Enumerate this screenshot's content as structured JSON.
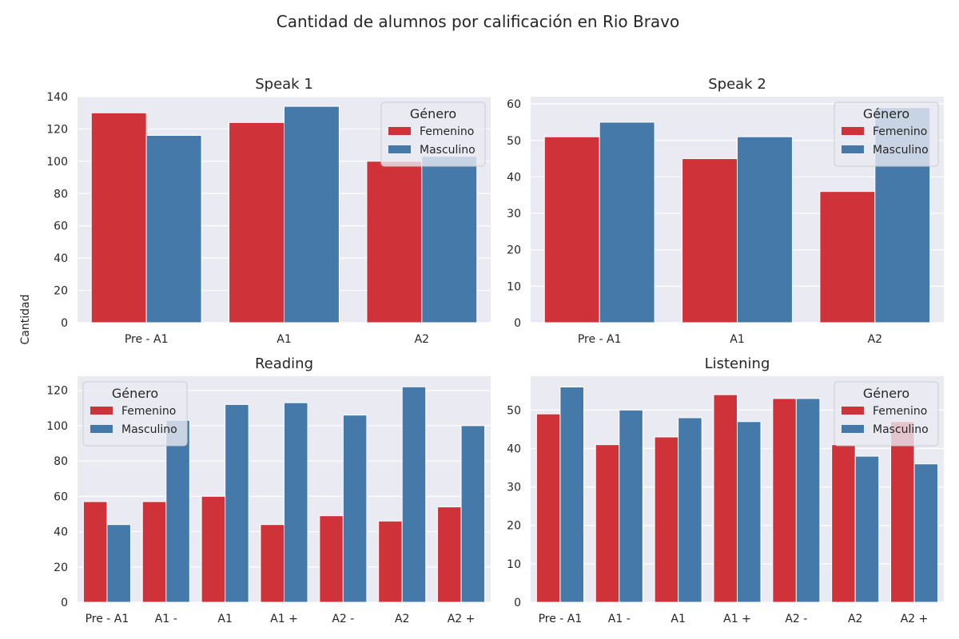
{
  "title": "Cantidad de alumnos por calificación en Rio Bravo",
  "ylabel": "Cantidad",
  "colors": {
    "Femenino": "#d0323a",
    "Masculino": "#4479a9",
    "background": "#eaeaf2",
    "grid": "#ffffff"
  },
  "chart_data": [
    {
      "type": "bar",
      "title": "Speak 1",
      "categories": [
        "Pre - A1",
        "A1",
        "A2"
      ],
      "ylim": [
        0,
        140
      ],
      "yticks": [
        0,
        20,
        40,
        60,
        80,
        100,
        120,
        140
      ],
      "legend": {
        "title": "Género",
        "position": "upper right"
      },
      "series": [
        {
          "name": "Femenino",
          "color": "#d0323a",
          "values": [
            130,
            124,
            100
          ]
        },
        {
          "name": "Masculino",
          "color": "#4479a9",
          "values": [
            116,
            134,
            103
          ]
        }
      ]
    },
    {
      "type": "bar",
      "title": "Speak 2",
      "categories": [
        "Pre - A1",
        "A1",
        "A2"
      ],
      "ylim": [
        0,
        62
      ],
      "yticks": [
        0,
        10,
        20,
        30,
        40,
        50,
        60
      ],
      "legend": {
        "title": "Género",
        "position": "upper right"
      },
      "series": [
        {
          "name": "Femenino",
          "color": "#d0323a",
          "values": [
            51,
            45,
            36
          ]
        },
        {
          "name": "Masculino",
          "color": "#4479a9",
          "values": [
            55,
            51,
            59
          ]
        }
      ]
    },
    {
      "type": "bar",
      "title": "Reading",
      "categories": [
        "Pre - A1",
        "A1 -",
        "A1",
        "A1 +",
        "A2 -",
        "A2",
        "A2 +"
      ],
      "ylim": [
        0,
        128
      ],
      "yticks": [
        0,
        20,
        40,
        60,
        80,
        100,
        120
      ],
      "legend": {
        "title": "Género",
        "position": "upper left"
      },
      "series": [
        {
          "name": "Femenino",
          "color": "#d0323a",
          "values": [
            57,
            57,
            60,
            44,
            49,
            46,
            54
          ]
        },
        {
          "name": "Masculino",
          "color": "#4479a9",
          "values": [
            44,
            103,
            112,
            113,
            106,
            122,
            100
          ]
        }
      ]
    },
    {
      "type": "bar",
      "title": "Listening",
      "categories": [
        "Pre - A1",
        "A1 -",
        "A1",
        "A1 +",
        "A2 -",
        "A2",
        "A2 +"
      ],
      "ylim": [
        0,
        58.8
      ],
      "yticks": [
        0,
        10,
        20,
        30,
        40,
        50
      ],
      "legend": {
        "title": "Género",
        "position": "upper right"
      },
      "series": [
        {
          "name": "Femenino",
          "color": "#d0323a",
          "values": [
            49,
            41,
            43,
            54,
            53,
            41,
            47
          ]
        },
        {
          "name": "Masculino",
          "color": "#4479a9",
          "values": [
            56,
            50,
            48,
            47,
            53,
            38,
            36
          ]
        }
      ]
    }
  ]
}
